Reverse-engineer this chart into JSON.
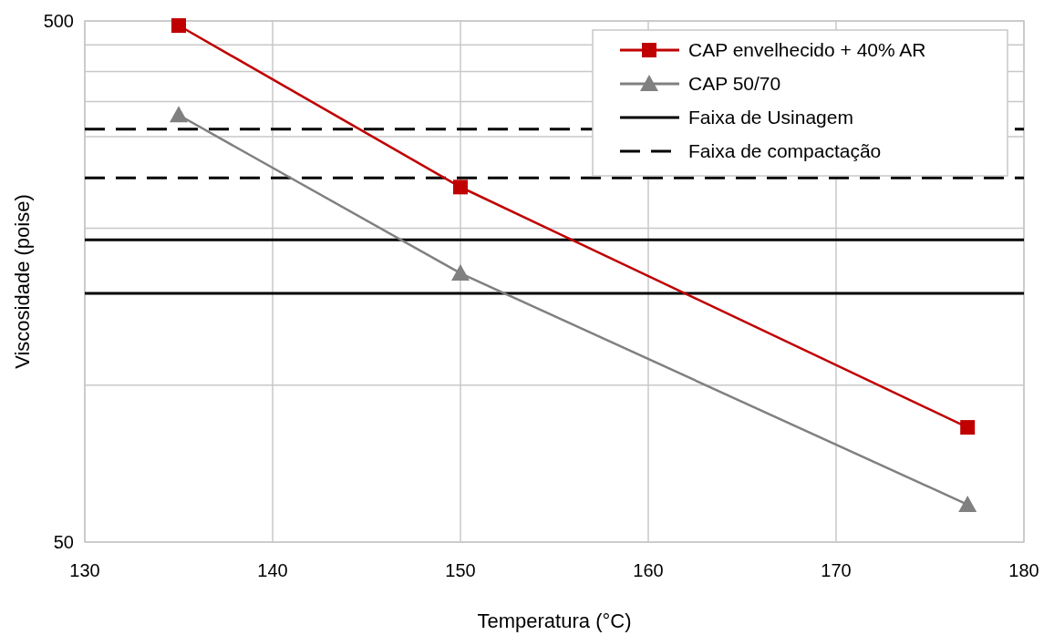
{
  "chart_data": {
    "type": "line",
    "xlabel": "Temperatura (°C)",
    "ylabel": "Viscosidade (poise)",
    "x": [
      135,
      150,
      177
    ],
    "series": [
      {
        "name": "CAP envelhecido + 40% AR",
        "color": "#c00000",
        "marker": "square",
        "values": [
          490,
          240,
          83
        ]
      },
      {
        "name": "CAP 50/70",
        "color": "#808080",
        "marker": "triangle",
        "values": [
          330,
          164,
          59
        ]
      }
    ],
    "ref_lines": [
      {
        "axis": "y",
        "value": 190,
        "label": "Faixa de Usinagem",
        "color": "#000000",
        "line_style": "solid"
      },
      {
        "axis": "y",
        "value": 150,
        "color": "#000000",
        "line_style": "solid"
      },
      {
        "axis": "y",
        "value": 310,
        "label": "Faixa de compactação",
        "color": "#000000",
        "line_style": "dashed"
      },
      {
        "axis": "y",
        "value": 250,
        "color": "#000000",
        "line_style": "dashed"
      }
    ],
    "xlim": [
      130,
      180
    ],
    "xticks": [
      130,
      140,
      150,
      160,
      170,
      180
    ],
    "ylim": [
      50,
      500
    ],
    "yticks": [
      50,
      {
        "value": 100,
        "label": null
      },
      {
        "value": 200,
        "label": null
      },
      {
        "value": 300,
        "label": null
      },
      {
        "value": 350,
        "label": null
      },
      {
        "value": 400,
        "label": null
      },
      {
        "value": 450,
        "label": null
      },
      500
    ],
    "log": "y",
    "grid": true,
    "legend": "top right"
  }
}
